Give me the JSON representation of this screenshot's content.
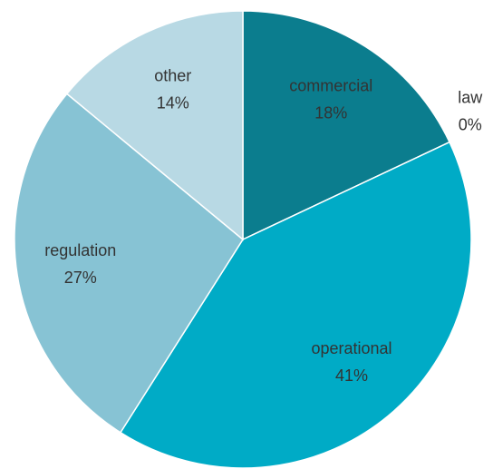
{
  "chart_data": {
    "type": "pie",
    "categories": [
      "commercial",
      "law",
      "operational",
      "regulation",
      "other"
    ],
    "values": [
      18,
      0,
      41,
      27,
      14
    ],
    "value_labels": [
      "18%",
      "0%",
      "41%",
      "27%",
      "14%"
    ],
    "colors": [
      "#0b7d8e",
      "#2a9fb5",
      "#00abc6",
      "#87c3d4",
      "#b8d9e4"
    ]
  }
}
